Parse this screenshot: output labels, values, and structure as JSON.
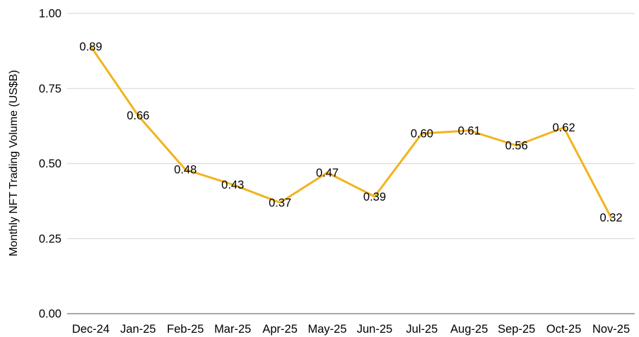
{
  "chart_data": {
    "type": "line",
    "title": "",
    "xlabel": "",
    "ylabel": "Monthly NFT Trading Volume (US$B)",
    "categories": [
      "Dec-24",
      "Jan-25",
      "Feb-25",
      "Mar-25",
      "Apr-25",
      "May-25",
      "Jun-25",
      "Jul-25",
      "Aug-25",
      "Sep-25",
      "Oct-25",
      "Nov-25"
    ],
    "values": [
      0.89,
      0.66,
      0.48,
      0.43,
      0.37,
      0.47,
      0.39,
      0.6,
      0.61,
      0.56,
      0.62,
      0.32
    ],
    "data_labels": [
      "0.89",
      "0.66",
      "0.48",
      "0.43",
      "0.37",
      "0.47",
      "0.39",
      "0.60",
      "0.61",
      "0.56",
      "0.62",
      "0.32"
    ],
    "ylim": [
      0,
      1
    ],
    "yticks": [
      1.0,
      0.75,
      0.5,
      0.25,
      0.0
    ],
    "ytick_labels": [
      "1.00",
      "0.75",
      "0.50",
      "0.25",
      "0.00"
    ],
    "grid": true,
    "legend": "none",
    "markers": "none",
    "colors": {
      "line": "#F2B31C",
      "grid": "#DCDCDC",
      "axis": "#8E8E8E",
      "text": "#000000",
      "background": "#FFFFFF"
    }
  }
}
